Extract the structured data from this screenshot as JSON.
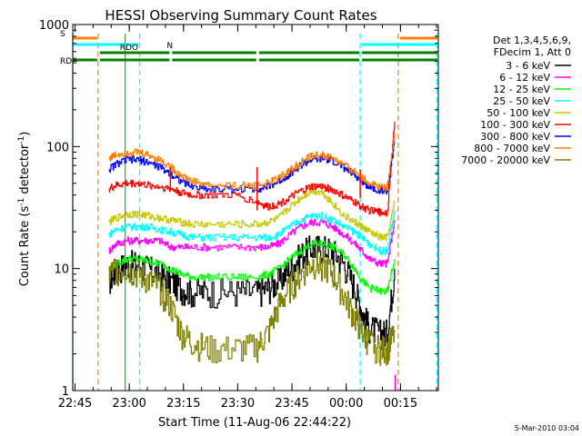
{
  "chart_data": {
    "type": "line",
    "title": "HESSI Observing Summary Count Rates",
    "xlabel": "Start Time (11-Aug-06 22:44:22)",
    "ylabel_parts": [
      "Count Rate (s",
      "-1",
      " detector",
      "-1",
      ")"
    ],
    "ylabel": "Count Rate (s^-1 detector^-1)",
    "y_scale": "log",
    "ylim": [
      1,
      1000
    ],
    "y_ticks": [
      1,
      10,
      100,
      1000
    ],
    "y_tick_labels": [
      "1",
      "10",
      "100",
      "1000"
    ],
    "xlim": [
      "22:44:22",
      "00:25:30"
    ],
    "x_tick_labels": [
      "22:45",
      "23:00",
      "23:15",
      "23:30",
      "23:45",
      "00:00",
      "00:15"
    ],
    "x_tick_minutes": [
      0.63,
      15.63,
      30.63,
      45.63,
      60.63,
      75.63,
      90.63
    ],
    "x_range_minutes": [
      0,
      101.1
    ],
    "timestamp": "5-Mar-2010 03:04",
    "legend": {
      "position": "right",
      "header": [
        "Det 1,3,4,5,6,9,",
        "FDecim 1, Att 0"
      ]
    },
    "flags": [
      {
        "label": "S",
        "color": "#ff8000",
        "segments": [
          [
            0,
            7
          ],
          [
            90,
            101.1
          ]
        ]
      },
      {
        "label": "N",
        "color": "#00ffff",
        "segments": [
          [
            0,
            18.5
          ],
          [
            79.5,
            101.1
          ]
        ]
      },
      {
        "label": "RDO",
        "color": "#008000",
        "segments": [
          [
            7,
            27
          ],
          [
            27,
            51
          ],
          [
            51,
            79.5
          ],
          [
            79.5,
            101.1
          ]
        ]
      },
      {
        "label": "RD6",
        "color": "#008000",
        "segments": [
          [
            0,
            7
          ],
          [
            7,
            27
          ],
          [
            27,
            51
          ],
          [
            51,
            79.5
          ],
          [
            79.5,
            101.1
          ]
        ]
      }
    ],
    "markers": [
      {
        "color": "#00c000",
        "x": 0.0
      },
      {
        "color": "#ff8000",
        "x": 7.0
      },
      {
        "color": "#00c000",
        "x": 14.5
      },
      {
        "color": "#00ffff",
        "x": 18.5
      },
      {
        "color": "#00ffff",
        "x": 79.5
      },
      {
        "color": "#ff8000",
        "x": 90.0
      },
      {
        "color": "#00ffff",
        "x": 100.7
      }
    ],
    "series": [
      {
        "name": "3 - 6 keV",
        "color": "#000000",
        "x": [
          10,
          12,
          15,
          18,
          21,
          24,
          27,
          30,
          33,
          38,
          45,
          51,
          54,
          57,
          60,
          63,
          66,
          69,
          72,
          75,
          78,
          80,
          82,
          85,
          87,
          89
        ],
        "values": [
          8,
          10,
          11,
          11,
          10,
          9,
          8,
          7,
          6.5,
          6.5,
          6.5,
          6.5,
          7,
          8,
          10,
          13,
          15,
          15,
          14,
          11,
          7,
          4.5,
          3.3,
          3,
          3,
          10
        ]
      },
      {
        "name": "6 - 12 keV",
        "color": "#ff00ff",
        "x": [
          10,
          12,
          15,
          18,
          21,
          24,
          27,
          30,
          33,
          38,
          45,
          51,
          54,
          57,
          60,
          63,
          66,
          69,
          72,
          75,
          78,
          80,
          82,
          85,
          87,
          89
        ],
        "values": [
          14,
          16,
          17,
          17,
          17,
          17,
          15,
          15,
          15,
          15,
          15,
          15,
          15,
          16,
          19,
          22,
          24,
          24,
          22,
          19,
          16,
          14,
          12,
          11,
          11,
          25
        ]
      },
      {
        "name": "12 - 25 keV",
        "color": "#00ff00",
        "x": [
          10,
          12,
          15,
          18,
          21,
          24,
          27,
          30,
          33,
          38,
          45,
          51,
          54,
          57,
          60,
          63,
          66,
          69,
          72,
          75,
          78,
          80,
          82,
          85,
          87,
          89
        ],
        "values": [
          10,
          11,
          12,
          12,
          11.5,
          11,
          10,
          9,
          8.5,
          8.5,
          8.5,
          8.5,
          9,
          10,
          12,
          14,
          16,
          16,
          15,
          13,
          10,
          8,
          7,
          6.5,
          6.5,
          12
        ]
      },
      {
        "name": "25 - 50 keV",
        "color": "#00ffff",
        "x": [
          10,
          12,
          15,
          18,
          21,
          24,
          27,
          30,
          33,
          38,
          45,
          51,
          54,
          57,
          60,
          63,
          66,
          69,
          72,
          75,
          78,
          80,
          82,
          85,
          87,
          89
        ],
        "values": [
          19,
          21,
          22,
          22,
          22,
          21,
          20,
          19,
          18,
          18,
          18,
          18,
          18,
          19,
          22,
          25,
          27,
          27,
          25,
          22,
          20,
          18,
          16,
          14,
          14,
          30
        ]
      },
      {
        "name": "50 - 100 keV",
        "color": "#c8c800",
        "x": [
          10,
          12,
          15,
          18,
          21,
          24,
          27,
          30,
          33,
          38,
          45,
          51,
          54,
          57,
          60,
          63,
          66,
          69,
          72,
          75,
          78,
          80,
          82,
          85,
          87,
          89
        ],
        "values": [
          24,
          26,
          28,
          28,
          27,
          26,
          25,
          24,
          23,
          23,
          23,
          23,
          24,
          26,
          32,
          38,
          44,
          42,
          34,
          27,
          24,
          22,
          20,
          18,
          18,
          35
        ]
      },
      {
        "name": "100 - 300 keV",
        "color": "#ff0000",
        "x": [
          10,
          12,
          15,
          18,
          21,
          24,
          27,
          30,
          33,
          38,
          45,
          51,
          54,
          57,
          60,
          63,
          66,
          69,
          72,
          75,
          78,
          80,
          82,
          85,
          87,
          89
        ],
        "values": [
          45,
          48,
          50,
          50,
          48,
          47,
          45,
          42,
          40,
          40,
          40,
          35,
          32,
          34,
          38,
          43,
          47,
          47,
          44,
          39,
          35,
          32,
          30,
          29,
          29,
          160
        ]
      },
      {
        "name": "300 - 800 keV",
        "color": "#0000ff",
        "x": [
          10,
          12,
          15,
          18,
          21,
          24,
          27,
          30,
          33,
          38,
          45,
          51,
          54,
          57,
          60,
          63,
          66,
          69,
          72,
          75,
          78,
          80,
          82,
          85,
          87,
          89
        ],
        "values": [
          65,
          72,
          78,
          78,
          74,
          68,
          60,
          52,
          47,
          45,
          45,
          45,
          47,
          52,
          60,
          70,
          78,
          79,
          76,
          67,
          58,
          52,
          47,
          44,
          44,
          110
        ]
      },
      {
        "name": "800 - 7000 keV",
        "color": "#ff8000",
        "x": [
          10,
          12,
          15,
          18,
          21,
          24,
          27,
          30,
          33,
          38,
          45,
          51,
          54,
          57,
          60,
          63,
          66,
          69,
          72,
          75,
          78,
          80,
          82,
          85,
          87,
          89
        ],
        "values": [
          80,
          86,
          90,
          90,
          85,
          78,
          68,
          58,
          52,
          48,
          48,
          48,
          50,
          56,
          64,
          74,
          84,
          85,
          80,
          70,
          62,
          56,
          50,
          47,
          47,
          130
        ]
      },
      {
        "name": "7000 - 20000 keV",
        "color": "#808000",
        "x": [
          10,
          12,
          15,
          18,
          21,
          24,
          27,
          30,
          33,
          38,
          45,
          51,
          54,
          57,
          60,
          63,
          66,
          69,
          72,
          75,
          78,
          80,
          82,
          85,
          87,
          89
        ],
        "values": [
          9,
          10,
          10,
          9,
          8,
          7,
          5,
          3,
          2.5,
          2.2,
          2.2,
          2.3,
          3,
          5,
          7,
          9,
          11,
          11,
          9,
          6,
          4,
          3,
          2.5,
          2.2,
          2.2,
          3
        ]
      }
    ],
    "spikes": [
      {
        "color": "#ff0000",
        "x": [
          27,
          27
        ],
        "values": [
          45,
          68
        ]
      },
      {
        "color": "#ff0000",
        "x": [
          51,
          51
        ],
        "values": [
          68,
          30
        ]
      },
      {
        "color": "#ff0000",
        "x": [
          79.5,
          79.5
        ],
        "values": [
          38,
          65
        ]
      },
      {
        "color": "#ff00ff",
        "x": [
          89.2,
          89.2
        ],
        "values": [
          1,
          1.35
        ]
      }
    ]
  }
}
